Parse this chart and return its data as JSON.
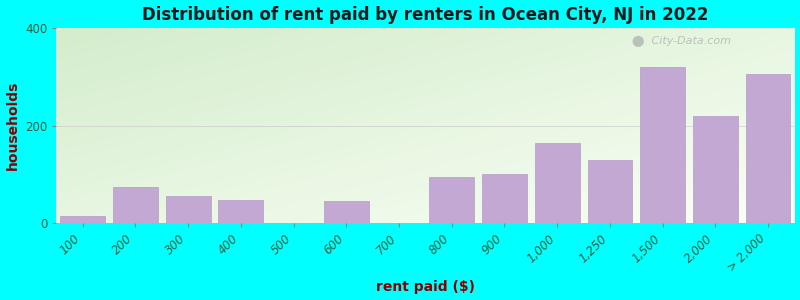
{
  "title": "Distribution of rent paid by renters in Ocean City, NJ in 2022",
  "xlabel": "rent paid ($)",
  "ylabel": "households",
  "categories": [
    "100",
    "200",
    "300",
    "400",
    "500",
    "600",
    "700",
    "800",
    "900",
    "1,000",
    "1,250",
    "1,500",
    "2,000",
    "> 2,000"
  ],
  "values": [
    15,
    75,
    55,
    48,
    0,
    45,
    0,
    95,
    100,
    165,
    130,
    320,
    220,
    305
  ],
  "bar_widths": [
    1,
    1,
    1,
    1,
    1,
    1,
    1,
    1,
    1,
    1,
    1,
    1,
    1,
    1
  ],
  "bar_color": "#c4a8d4",
  "bar_edge_color": "#b898c8",
  "background_color": "#00ffff",
  "grad_color_top": "#d4edcc",
  "grad_color_bottom": "#f8fff8",
  "grad_color_right": "#f0f8ff",
  "title_color": "#1a1a1a",
  "axis_label_color": "#8b0000",
  "tick_label_color": "#2a6040",
  "ylim": [
    0,
    400
  ],
  "yticks": [
    0,
    200,
    400
  ],
  "title_fontsize": 12,
  "label_fontsize": 10,
  "tick_fontsize": 8.5,
  "watermark_text": "City-Data.com"
}
